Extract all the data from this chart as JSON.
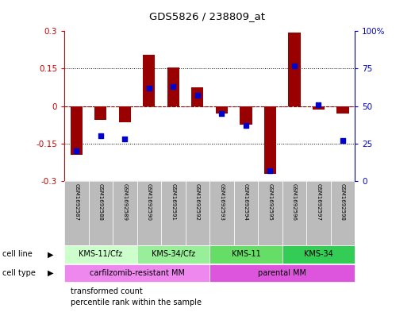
{
  "title": "GDS5826 / 238809_at",
  "samples": [
    "GSM1692587",
    "GSM1692588",
    "GSM1692589",
    "GSM1692590",
    "GSM1692591",
    "GSM1692592",
    "GSM1692593",
    "GSM1692594",
    "GSM1692595",
    "GSM1692596",
    "GSM1692597",
    "GSM1692598"
  ],
  "transformed_count": [
    -0.195,
    -0.055,
    -0.065,
    0.205,
    0.155,
    0.075,
    -0.03,
    -0.075,
    -0.27,
    0.295,
    -0.015,
    -0.03
  ],
  "percentile_rank": [
    20,
    30,
    28,
    62,
    63,
    57,
    45,
    37,
    7,
    77,
    51,
    27
  ],
  "ylim_left": [
    -0.3,
    0.3
  ],
  "ylim_right": [
    0,
    100
  ],
  "yticks_left": [
    -0.3,
    -0.15,
    0,
    0.15,
    0.3
  ],
  "yticks_right": [
    0,
    25,
    50,
    75,
    100
  ],
  "ytick_labels_left": [
    "-0.3",
    "-0.15",
    "0",
    "0.15",
    "0.3"
  ],
  "ytick_labels_right": [
    "0",
    "25",
    "50",
    "75",
    "100%"
  ],
  "bar_color": "#990000",
  "dot_color": "#0000cc",
  "cell_line_groups": [
    {
      "label": "KMS-11/Cfz",
      "start": 0,
      "end": 3,
      "color": "#ccffcc"
    },
    {
      "label": "KMS-34/Cfz",
      "start": 3,
      "end": 6,
      "color": "#99ee99"
    },
    {
      "label": "KMS-11",
      "start": 6,
      "end": 9,
      "color": "#66dd66"
    },
    {
      "label": "KMS-34",
      "start": 9,
      "end": 12,
      "color": "#33cc55"
    }
  ],
  "cell_type_groups": [
    {
      "label": "carfilzomib-resistant MM",
      "start": 0,
      "end": 6,
      "color": "#ee88ee"
    },
    {
      "label": "parental MM",
      "start": 6,
      "end": 12,
      "color": "#dd55dd"
    }
  ],
  "legend_bar_label": "transformed count",
  "legend_dot_label": "percentile rank within the sample",
  "left_axis_color": "#cc0000",
  "right_axis_color": "#0000cc",
  "sample_box_color": "#bbbbbb",
  "cell_line_label": "cell line",
  "cell_type_label": "cell type"
}
